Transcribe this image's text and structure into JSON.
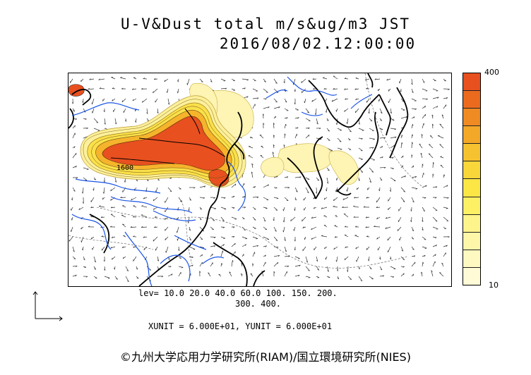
{
  "header": {
    "title": "U-V&Dust total m/s&ug/m3 JST",
    "subtitle": "2016/08/02.12:00:00"
  },
  "legend": {
    "max_label": "400",
    "min_label": "10",
    "levels_line1": "lev= 10.0 20.0 40.0 60.0 100. 150. 200.",
    "levels_line2": "300. 400.",
    "colors": [
      "#e8501f",
      "#ec6a1e",
      "#f08a22",
      "#f4a828",
      "#f7c22f",
      "#f9d63a",
      "#fbe646",
      "#fdf064",
      "#fef48c",
      "#fef7a9",
      "#fef9c0",
      "#fffbd6"
    ]
  },
  "units_line": "XUNIT = 6.000E+01, YUNIT = 6.000E+01",
  "map": {
    "contour_label": "1600",
    "land_color": "#000000",
    "river_color": "#1a55e6"
  },
  "copyright": "©九州大学応用力学研究所(RIAM)/国立環境研究所(NIES)"
}
